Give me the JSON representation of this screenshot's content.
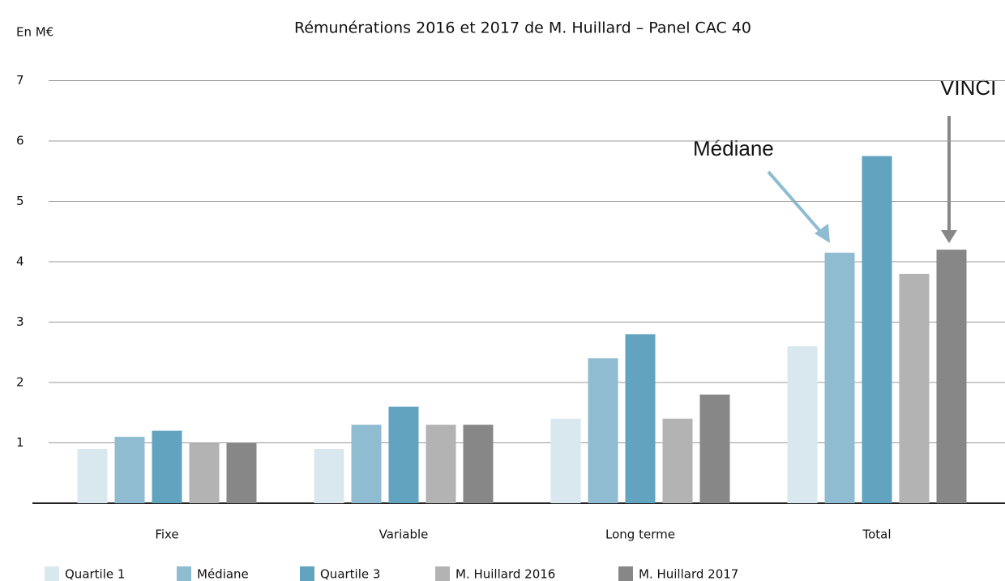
{
  "chart_data": {
    "type": "bar",
    "title": "Rémunérations 2016 et 2017 de M. Huillard – Panel CAC 40",
    "y_label": "En M€",
    "categories": [
      "Fixe",
      "Variable",
      "Long terme",
      "Total"
    ],
    "series": [
      {
        "name": "Quartile 1",
        "color": "#d9e8ef",
        "values": [
          0.9,
          0.9,
          1.4,
          2.6
        ]
      },
      {
        "name": "Médiane",
        "color": "#8fbcd0",
        "values": [
          1.1,
          1.3,
          2.4,
          4.15
        ]
      },
      {
        "name": "Quartile 3",
        "color": "#62a3bf",
        "values": [
          1.2,
          1.6,
          2.8,
          5.75
        ]
      },
      {
        "name": "M. Huillard 2016",
        "color": "#b3b3b3",
        "values": [
          1.0,
          1.3,
          1.4,
          3.8
        ]
      },
      {
        "name": "M. Huillard 2017",
        "color": "#878787",
        "values": [
          1.0,
          1.3,
          1.8,
          4.2
        ]
      }
    ],
    "annotations": [
      "Médiane",
      "VINCI"
    ],
    "ylim": [
      0,
      7
    ],
    "yticks": [
      1,
      2,
      3,
      4,
      5,
      6,
      7
    ],
    "grid": true
  }
}
